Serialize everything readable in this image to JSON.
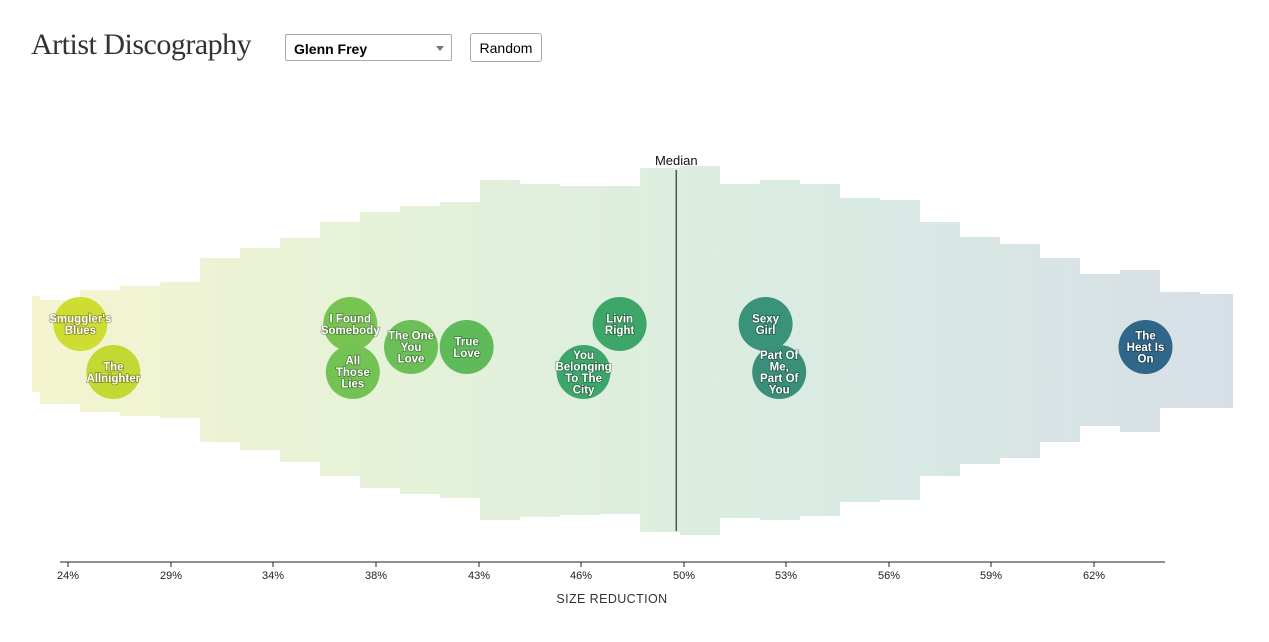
{
  "header": {
    "title": "Artist Discography",
    "artist_select": {
      "value": "Glenn Frey"
    },
    "random_label": "Random"
  },
  "chart_data": {
    "type": "scatter",
    "xlabel": "SIZE REDUCTION",
    "median_label": "Median",
    "median": 49.7,
    "xlim": [
      23.5,
      65.0
    ],
    "ticks": [
      "24%",
      "29%",
      "34%",
      "38%",
      "43%",
      "46%",
      "50%",
      "53%",
      "56%",
      "59%",
      "62%"
    ],
    "tick_values": [
      24,
      29,
      34,
      38,
      43,
      46,
      50,
      53,
      56,
      59,
      62
    ],
    "gradient_colors": [
      "#f4f5cf",
      "#e3f1da",
      "#d9ebe3",
      "#d7dfe6"
    ],
    "songs": [
      {
        "lines": [
          "Smuggler's",
          "Blues"
        ],
        "x": 24.6,
        "row": 0,
        "color": "#cfdc32"
      },
      {
        "lines": [
          "The",
          "Allnighter"
        ],
        "x": 26.2,
        "row": 1,
        "color": "#c3d832"
      },
      {
        "lines": [
          "I Found",
          "Somebody"
        ],
        "x": 37.0,
        "row": 0,
        "color": "#78c452"
      },
      {
        "lines": [
          "All",
          "Those",
          "Lies"
        ],
        "x": 37.1,
        "row": 1,
        "color": "#73c254"
      },
      {
        "lines": [
          "The One",
          "You",
          "Love"
        ],
        "x": 39.7,
        "row": 0.5,
        "color": "#6cbf56"
      },
      {
        "lines": [
          "True",
          "Love"
        ],
        "x": 42.4,
        "row": 0.5,
        "color": "#5fba5a"
      },
      {
        "lines": [
          "Livin",
          "Right"
        ],
        "x": 47.5,
        "row": 0,
        "color": "#3fa66a"
      },
      {
        "lines": [
          "You",
          "Belonging",
          "To The",
          "City"
        ],
        "x": 46.1,
        "row": 1,
        "color": "#3da66b"
      },
      {
        "lines": [
          "Sexy",
          "Girl"
        ],
        "x": 52.4,
        "row": 0,
        "color": "#3a9278"
      },
      {
        "lines": [
          "Part Of",
          "Me,",
          "Part Of",
          "You"
        ],
        "x": 52.8,
        "row": 1,
        "color": "#3a8f79"
      },
      {
        "lines": [
          "The",
          "Heat Is",
          "On"
        ],
        "x": 63.5,
        "row": 0.5,
        "color": "#2f6689"
      }
    ]
  }
}
